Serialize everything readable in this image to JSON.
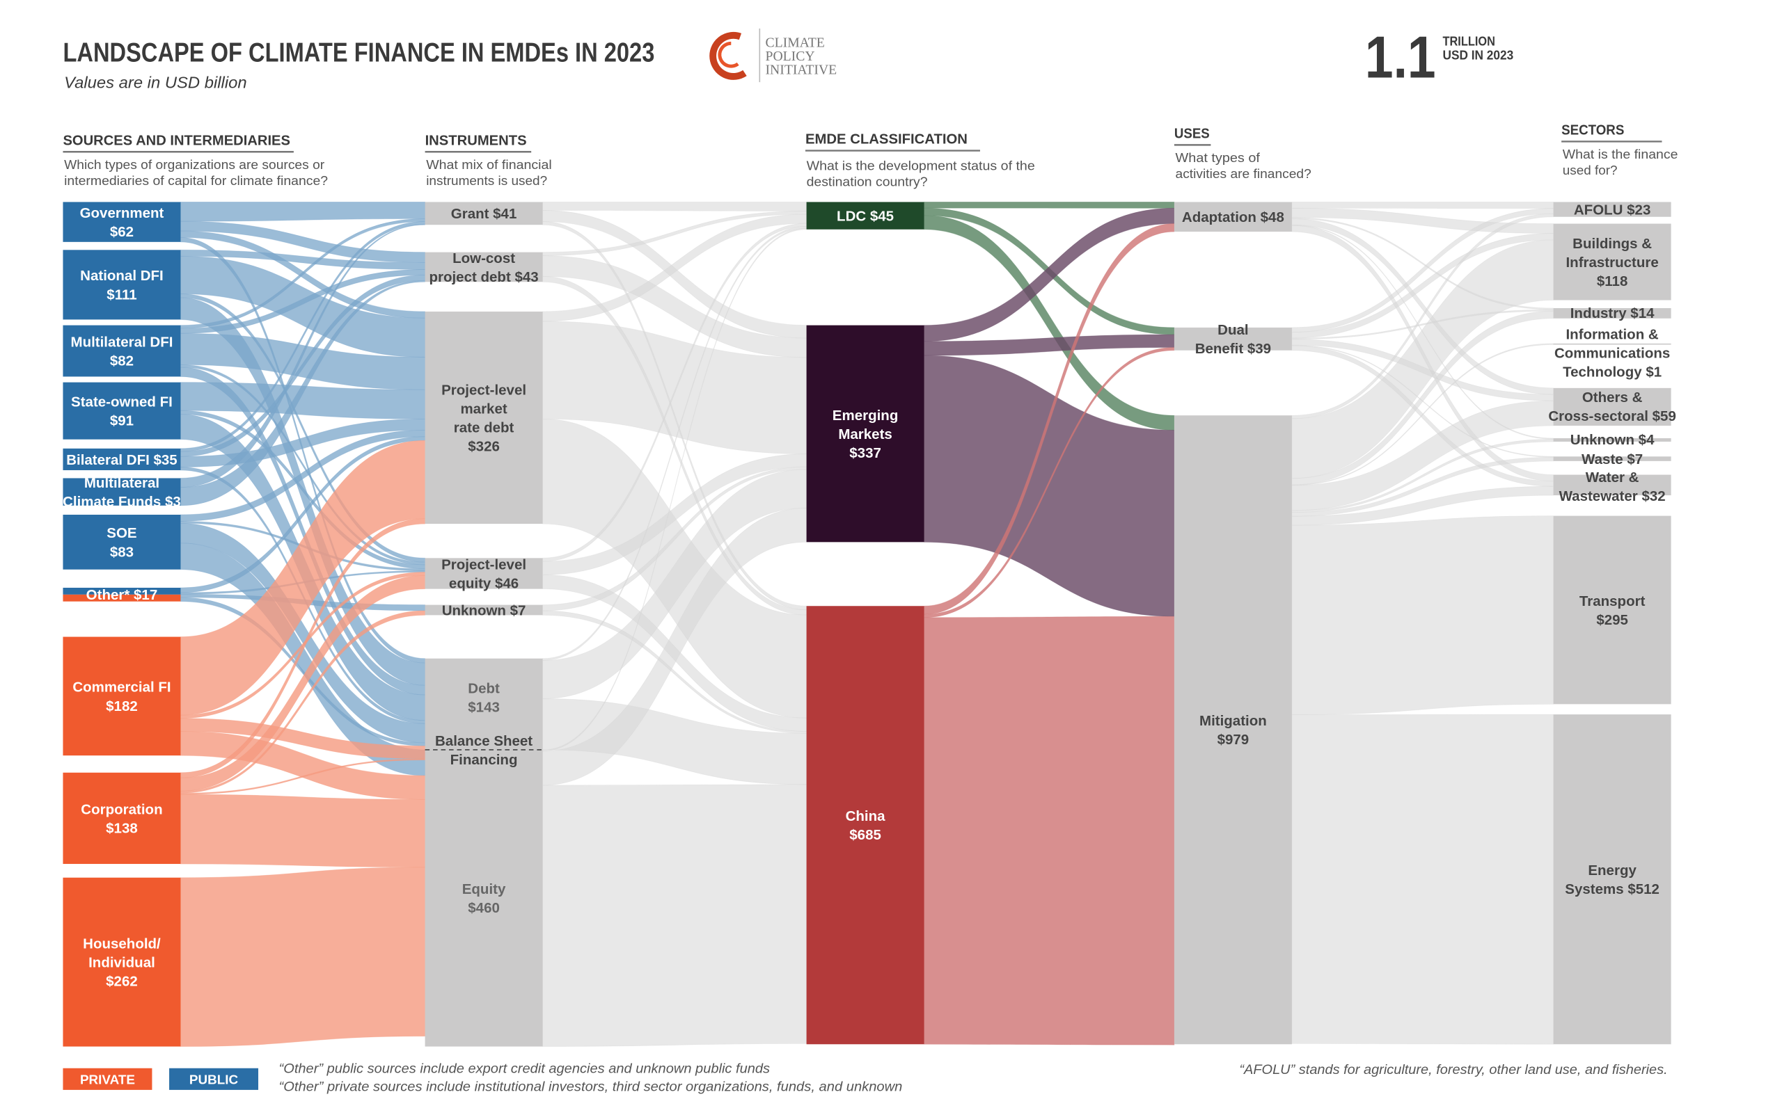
{
  "header": {
    "title": "LANDSCAPE OF CLIMATE FINANCE IN EMDEs IN 2023",
    "subtitle": "Values are in USD billion",
    "logo_lines": [
      "CLIMATE",
      "POLICY",
      "INITIATIVE"
    ],
    "total_value": "1.1",
    "total_unit_line1": "TRILLION",
    "total_unit_line2": "USD IN 2023"
  },
  "columns": [
    {
      "title": "SOURCES AND INTERMEDIARIES",
      "question_lines": [
        "Which types of organizations are sources or",
        "intermediaries of capital for climate finance?"
      ]
    },
    {
      "title": "INSTRUMENTS",
      "question_lines": [
        "What mix of financial",
        "instruments is used?"
      ]
    },
    {
      "title": "EMDE CLASSIFICATION",
      "question_lines": [
        "What is the development status of the",
        "destination country?"
      ]
    },
    {
      "title": "USES",
      "question_lines": [
        "What types of",
        "activities are financed?"
      ]
    },
    {
      "title": "SECTORS",
      "question_lines": [
        "What is the finance",
        "used for?"
      ]
    }
  ],
  "legend": {
    "private": "PRIVATE",
    "public": "PUBLIC"
  },
  "footnotes": {
    "public_other": "“Other” public sources include export credit agencies and unknown public funds",
    "private_other": "“Other” private sources include institutional investors, third sector organizations, funds, and unknown",
    "afolu": "“AFOLU” stands for agriculture, forestry, other land use, and fisheries."
  },
  "colors": {
    "public": "#2a6ea6",
    "private": "#f05a2e",
    "public_link": "#7aa6ca",
    "private_link": "#f59a80",
    "grey_node": "#cbcaca",
    "grey_link": "#d6d6d6",
    "ldc": "#1f4a2a",
    "emerging": "#2e0d2a",
    "china": "#b33a3a"
  },
  "chart_data": {
    "type": "sankey",
    "title": "LANDSCAPE OF CLIMATE FINANCE IN EMDEs IN 2023",
    "unit": "USD billion",
    "nodes": [
      {
        "id": "gov",
        "column": 0,
        "label_lines": [
          "Government",
          "$62"
        ],
        "value": 62,
        "kind": "public"
      },
      {
        "id": "ndfi",
        "column": 0,
        "label_lines": [
          "National DFI",
          "$111"
        ],
        "value": 111,
        "kind": "public"
      },
      {
        "id": "mdfi",
        "column": 0,
        "label_lines": [
          "Multilateral DFI",
          "$82"
        ],
        "value": 82,
        "kind": "public"
      },
      {
        "id": "sofi",
        "column": 0,
        "label_lines": [
          "State-owned FI",
          "$91"
        ],
        "value": 91,
        "kind": "public"
      },
      {
        "id": "bdfi",
        "column": 0,
        "label_lines": [
          "Bilateral DFI $35"
        ],
        "value": 35,
        "kind": "public"
      },
      {
        "id": "mcf",
        "column": 0,
        "label_lines": [
          "Multilateral",
          "Climate Funds $3"
        ],
        "value": 3,
        "kind": "public"
      },
      {
        "id": "soe",
        "column": 0,
        "label_lines": [
          "SOE",
          "$83"
        ],
        "value": 83,
        "kind": "public"
      },
      {
        "id": "other",
        "column": 0,
        "label_lines": [
          "Other* $17"
        ],
        "value": 17,
        "kind": "mixed"
      },
      {
        "id": "cfi",
        "column": 0,
        "label_lines": [
          "Commercial FI",
          "$182"
        ],
        "value": 182,
        "kind": "private"
      },
      {
        "id": "corp",
        "column": 0,
        "label_lines": [
          "Corporation",
          "$138"
        ],
        "value": 138,
        "kind": "private"
      },
      {
        "id": "hh",
        "column": 0,
        "label_lines": [
          "Household/",
          "Individual",
          "$262"
        ],
        "value": 262,
        "kind": "private"
      },
      {
        "id": "grant",
        "column": 1,
        "label_lines": [
          "Grant $41"
        ],
        "value": 41,
        "kind": "grey"
      },
      {
        "id": "lcd",
        "column": 1,
        "label_lines": [
          "Low-cost",
          "project debt $43"
        ],
        "value": 43,
        "kind": "grey"
      },
      {
        "id": "mrd",
        "column": 1,
        "label_lines": [
          "Project-level",
          "market",
          "rate debt",
          "$326"
        ],
        "value": 326,
        "kind": "grey"
      },
      {
        "id": "peq",
        "column": 1,
        "label_lines": [
          "Project-level",
          "equity $46"
        ],
        "value": 46,
        "kind": "grey"
      },
      {
        "id": "unk",
        "column": 1,
        "label_lines": [
          "Unknown $7"
        ],
        "value": 7,
        "kind": "grey"
      },
      {
        "id": "debt",
        "column": 1,
        "label_lines": [
          "Debt",
          "$143"
        ],
        "value": 143,
        "kind": "grey_light"
      },
      {
        "id": "equity",
        "column": 1,
        "label_lines": [
          "Equity",
          "$460"
        ],
        "value": 460,
        "kind": "grey_light"
      },
      {
        "id": "ldc",
        "column": 2,
        "label_lines": [
          "LDC $45"
        ],
        "value": 45,
        "kind": "ldc"
      },
      {
        "id": "em",
        "column": 2,
        "label_lines": [
          "Emerging",
          "Markets",
          "$337"
        ],
        "value": 337,
        "kind": "emerging"
      },
      {
        "id": "china",
        "column": 2,
        "label_lines": [
          "China",
          "$685"
        ],
        "value": 685,
        "kind": "china"
      },
      {
        "id": "adapt",
        "column": 3,
        "label_lines": [
          "Adaptation $48"
        ],
        "value": 48,
        "kind": "grey"
      },
      {
        "id": "dual",
        "column": 3,
        "label_lines": [
          "Dual",
          "Benefit $39"
        ],
        "value": 39,
        "kind": "grey"
      },
      {
        "id": "mitig",
        "column": 3,
        "label_lines": [
          "Mitigation",
          "$979"
        ],
        "value": 979,
        "kind": "grey"
      },
      {
        "id": "afolu",
        "column": 4,
        "label_lines": [
          "AFOLU $23"
        ],
        "value": 23,
        "kind": "grey"
      },
      {
        "id": "build",
        "column": 4,
        "label_lines": [
          "Buildings &",
          "Infrastructure",
          "$118"
        ],
        "value": 118,
        "kind": "grey"
      },
      {
        "id": "ind",
        "column": 4,
        "label_lines": [
          "Industry $14"
        ],
        "value": 14,
        "kind": "grey"
      },
      {
        "id": "ict",
        "column": 4,
        "label_lines": [
          "Information &",
          "Communications",
          "Technology $1"
        ],
        "value": 1,
        "kind": "grey"
      },
      {
        "id": "oth",
        "column": 4,
        "label_lines": [
          "Others &",
          "Cross-sectoral $59"
        ],
        "value": 59,
        "kind": "grey"
      },
      {
        "id": "sunk",
        "column": 4,
        "label_lines": [
          "Unknown $4"
        ],
        "value": 4,
        "kind": "grey"
      },
      {
        "id": "waste",
        "column": 4,
        "label_lines": [
          "Waste $7"
        ],
        "value": 7,
        "kind": "grey"
      },
      {
        "id": "water",
        "column": 4,
        "label_lines": [
          "Water &",
          "Wastewater $32"
        ],
        "value": 32,
        "kind": "grey"
      },
      {
        "id": "trans",
        "column": 4,
        "label_lines": [
          "Transport",
          "$295"
        ],
        "value": 295,
        "kind": "grey"
      },
      {
        "id": "energy",
        "column": 4,
        "label_lines": [
          "Energy",
          "Systems $512"
        ],
        "value": 512,
        "kind": "grey"
      }
    ],
    "balance_sheet_label_lines": [
      "Balance Sheet",
      "Financing"
    ],
    "links": [
      [
        "gov",
        "grant",
        30
      ],
      [
        "gov",
        "lcd",
        15
      ],
      [
        "gov",
        "mrd",
        10
      ],
      [
        "gov",
        "debt",
        7
      ],
      [
        "ndfi",
        "lcd",
        10
      ],
      [
        "ndfi",
        "mrd",
        60
      ],
      [
        "ndfi",
        "peq",
        6
      ],
      [
        "ndfi",
        "debt",
        35
      ],
      [
        "mdfi",
        "grant",
        5
      ],
      [
        "mdfi",
        "lcd",
        8
      ],
      [
        "mdfi",
        "mrd",
        50
      ],
      [
        "mdfi",
        "peq",
        4
      ],
      [
        "mdfi",
        "debt",
        15
      ],
      [
        "sofi",
        "mrd",
        45
      ],
      [
        "sofi",
        "peq",
        6
      ],
      [
        "sofi",
        "debt",
        40
      ],
      [
        "bdfi",
        "grant",
        5
      ],
      [
        "bdfi",
        "lcd",
        8
      ],
      [
        "bdfi",
        "mrd",
        17
      ],
      [
        "bdfi",
        "debt",
        5
      ],
      [
        "mcf",
        "grant",
        1
      ],
      [
        "mcf",
        "lcd",
        2
      ],
      [
        "soe",
        "mrd",
        10
      ],
      [
        "soe",
        "peq",
        3
      ],
      [
        "soe",
        "debt",
        30
      ],
      [
        "soe",
        "equity",
        40
      ],
      [
        "other",
        "mrd",
        6
      ],
      [
        "other",
        "peq",
        2
      ],
      [
        "other",
        "unk",
        4
      ],
      [
        "other",
        "debt",
        5
      ],
      [
        "cfi",
        "mrd",
        120
      ],
      [
        "cfi",
        "peq",
        5
      ],
      [
        "cfi",
        "debt",
        20
      ],
      [
        "cfi",
        "equity",
        37
      ],
      [
        "corp",
        "mrd",
        8
      ],
      [
        "corp",
        "peq",
        20
      ],
      [
        "corp",
        "unk",
        3
      ],
      [
        "corp",
        "debt",
        2
      ],
      [
        "corp",
        "equity",
        105
      ],
      [
        "hh",
        "equity",
        262
      ],
      [
        "grant",
        "ldc",
        15
      ],
      [
        "grant",
        "em",
        20
      ],
      [
        "grant",
        "china",
        6
      ],
      [
        "lcd",
        "ldc",
        5
      ],
      [
        "lcd",
        "em",
        30
      ],
      [
        "lcd",
        "china",
        8
      ],
      [
        "mrd",
        "ldc",
        15
      ],
      [
        "mrd",
        "em",
        150
      ],
      [
        "mrd",
        "china",
        161
      ],
      [
        "peq",
        "ldc",
        5
      ],
      [
        "peq",
        "em",
        20
      ],
      [
        "peq",
        "china",
        21
      ],
      [
        "unk",
        "em",
        4
      ],
      [
        "unk",
        "china",
        3
      ],
      [
        "debt",
        "ldc",
        3
      ],
      [
        "debt",
        "em",
        60
      ],
      [
        "debt",
        "china",
        80
      ],
      [
        "equity",
        "ldc",
        2
      ],
      [
        "equity",
        "em",
        53
      ],
      [
        "equity",
        "china",
        405
      ],
      [
        "ldc",
        "adapt",
        10
      ],
      [
        "ldc",
        "dual",
        12
      ],
      [
        "ldc",
        "mitig",
        23
      ],
      [
        "em",
        "adapt",
        25
      ],
      [
        "em",
        "dual",
        22
      ],
      [
        "em",
        "mitig",
        290
      ],
      [
        "china",
        "adapt",
        13
      ],
      [
        "china",
        "dual",
        5
      ],
      [
        "china",
        "mitig",
        667
      ],
      [
        "adapt",
        "afolu",
        10
      ],
      [
        "adapt",
        "build",
        15
      ],
      [
        "adapt",
        "ind",
        2
      ],
      [
        "adapt",
        "oth",
        10
      ],
      [
        "adapt",
        "sunk",
        1
      ],
      [
        "adapt",
        "water",
        10
      ],
      [
        "dual",
        "afolu",
        8
      ],
      [
        "dual",
        "build",
        10
      ],
      [
        "dual",
        "ind",
        2
      ],
      [
        "dual",
        "oth",
        10
      ],
      [
        "dual",
        "waste",
        1
      ],
      [
        "dual",
        "water",
        8
      ],
      [
        "mitig",
        "afolu",
        5
      ],
      [
        "mitig",
        "build",
        93
      ],
      [
        "mitig",
        "ind",
        10
      ],
      [
        "mitig",
        "ict",
        1
      ],
      [
        "mitig",
        "oth",
        39
      ],
      [
        "mitig",
        "sunk",
        3
      ],
      [
        "mitig",
        "waste",
        6
      ],
      [
        "mitig",
        "water",
        14
      ],
      [
        "mitig",
        "trans",
        295
      ],
      [
        "mitig",
        "energy",
        512
      ]
    ]
  }
}
